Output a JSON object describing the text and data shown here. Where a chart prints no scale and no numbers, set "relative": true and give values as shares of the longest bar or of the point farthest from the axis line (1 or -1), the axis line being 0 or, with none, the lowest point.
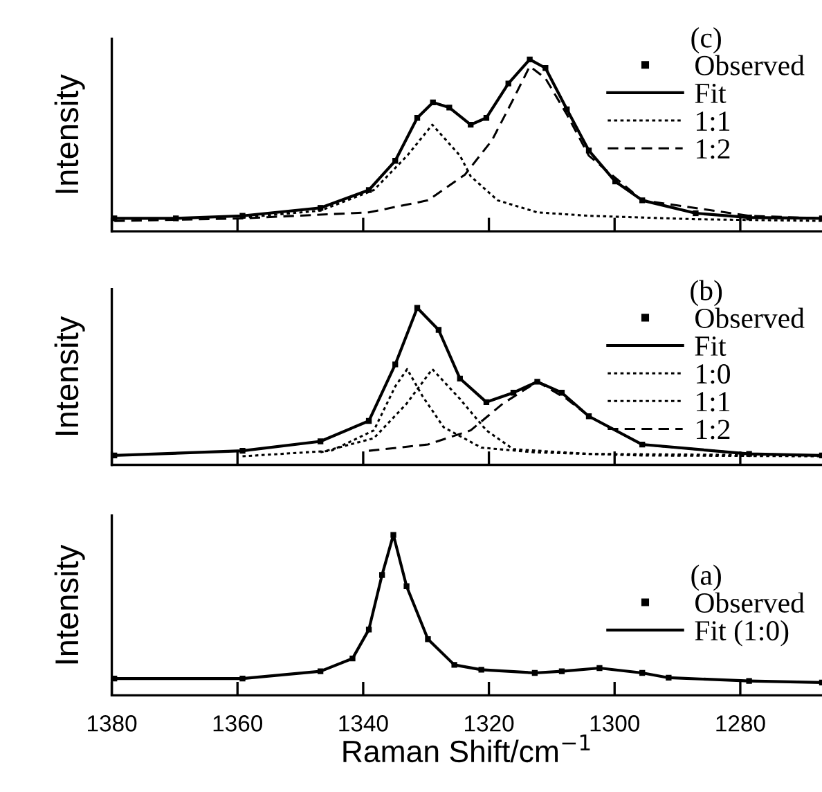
{
  "chart_data": [
    {
      "type": "line",
      "relative": true,
      "ylabel": "Intensity",
      "legend_title": "(c)",
      "legend": "top right",
      "tick_labels": false,
      "xlim": [
        1380,
        1267
      ],
      "xticks": [
        1380,
        1360,
        1340,
        1320,
        1300,
        1280
      ],
      "grid": false,
      "series": [
        {
          "name": "Observed",
          "type": "scatter",
          "marker": "square",
          "color": "#000000",
          "x": [
            1379.6,
            1369.8,
            1359.2,
            1346.8,
            1339.1,
            1334.9,
            1331.4,
            1328.9,
            1326.3,
            1322.9,
            1320.4,
            1316.9,
            1313.5,
            1311.0,
            1307.6,
            1304.1,
            1299.9,
            1295.6,
            1287.1,
            1278.6,
            1267
          ],
          "values": [
            0.075,
            0.075,
            0.09,
            0.136,
            0.24,
            0.41,
            0.66,
            0.75,
            0.72,
            0.62,
            0.66,
            0.86,
            1.0,
            0.95,
            0.71,
            0.47,
            0.29,
            0.18,
            0.105,
            0.08,
            0.075
          ]
        },
        {
          "name": "Fit",
          "line_style": "solid",
          "color": "#000000",
          "x": [
            1379.6,
            1369.8,
            1359.2,
            1346.8,
            1339.1,
            1334.9,
            1331.4,
            1328.9,
            1326.3,
            1322.9,
            1320.4,
            1316.9,
            1313.5,
            1311.0,
            1307.6,
            1304.1,
            1299.9,
            1295.6,
            1287.1,
            1278.6,
            1267
          ],
          "values": [
            0.075,
            0.075,
            0.09,
            0.136,
            0.24,
            0.41,
            0.66,
            0.75,
            0.72,
            0.62,
            0.66,
            0.86,
            1.0,
            0.95,
            0.71,
            0.47,
            0.29,
            0.18,
            0.105,
            0.08,
            0.075
          ]
        },
        {
          "name": "1:1",
          "line_style": "dotted",
          "color": "#000000",
          "x": [
            1359.2,
            1346.8,
            1338.3,
            1333.0,
            1329.0,
            1324.6,
            1322.9,
            1318.6,
            1312.3,
            1304.1,
            1287.1,
            1267
          ],
          "values": [
            0.08,
            0.12,
            0.24,
            0.44,
            0.62,
            0.44,
            0.32,
            0.18,
            0.11,
            0.09,
            0.07,
            0.06
          ]
        },
        {
          "name": "1:2",
          "line_style": "dashed",
          "color": "#000000",
          "x": [
            1379.6,
            1359.2,
            1339.1,
            1329.7,
            1323.8,
            1319.5,
            1316.1,
            1313.5,
            1311.0,
            1307.6,
            1304.1,
            1295.6,
            1278.6,
            1267
          ],
          "values": [
            0.06,
            0.075,
            0.11,
            0.18,
            0.33,
            0.53,
            0.77,
            0.96,
            0.89,
            0.68,
            0.44,
            0.18,
            0.09,
            0.075
          ]
        }
      ]
    },
    {
      "type": "line",
      "relative": true,
      "ylabel": "Intensity",
      "legend_title": "(b)",
      "legend": "top right",
      "tick_labels": false,
      "xlim": [
        1380,
        1267
      ],
      "xticks": [
        1380,
        1360,
        1340,
        1320,
        1300,
        1280
      ],
      "grid": false,
      "series": [
        {
          "name": "Observed",
          "type": "scatter",
          "marker": "square",
          "color": "#000000",
          "x": [
            1379.6,
            1359.2,
            1346.8,
            1339.1,
            1334.9,
            1331.4,
            1328.0,
            1324.6,
            1320.4,
            1316.1,
            1312.3,
            1308.4,
            1304.1,
            1295.6,
            1278.6,
            1267
          ],
          "values": [
            0.06,
            0.09,
            0.15,
            0.28,
            0.64,
            1.0,
            0.86,
            0.55,
            0.4,
            0.46,
            0.53,
            0.46,
            0.31,
            0.13,
            0.07,
            0.06
          ]
        },
        {
          "name": "Fit",
          "line_style": "solid",
          "color": "#000000",
          "x": [
            1379.6,
            1359.2,
            1346.8,
            1339.1,
            1334.9,
            1331.4,
            1328.0,
            1324.6,
            1320.4,
            1316.1,
            1312.3,
            1308.4,
            1304.1,
            1295.6,
            1278.6,
            1267
          ],
          "values": [
            0.06,
            0.09,
            0.15,
            0.28,
            0.64,
            1.0,
            0.86,
            0.55,
            0.4,
            0.46,
            0.53,
            0.46,
            0.31,
            0.13,
            0.07,
            0.06
          ]
        },
        {
          "name": "1:0",
          "line_style": "dotted",
          "color": "#000000",
          "x": [
            1359.2,
            1345.1,
            1338.3,
            1334.9,
            1333.0,
            1330.6,
            1327.2,
            1321.2,
            1312.7,
            1295.6,
            1267
          ],
          "values": [
            0.055,
            0.09,
            0.22,
            0.5,
            0.61,
            0.44,
            0.24,
            0.11,
            0.08,
            0.06,
            0.055
          ]
        },
        {
          "name": "1:1",
          "line_style": "dotted",
          "color": "#000000",
          "x": [
            1346.8,
            1338.3,
            1333.1,
            1329.0,
            1324.6,
            1320.4,
            1316.1,
            1304.1,
            1267
          ],
          "values": [
            0.08,
            0.17,
            0.39,
            0.61,
            0.42,
            0.22,
            0.1,
            0.07,
            0.06
          ]
        },
        {
          "name": "1:2",
          "line_style": "dashed",
          "color": "#000000",
          "x": [
            1339.1,
            1329.7,
            1322.9,
            1317.8,
            1312.3,
            1307.6,
            1304.1,
            1295.6,
            1278.6,
            1267
          ],
          "values": [
            0.09,
            0.13,
            0.22,
            0.39,
            0.53,
            0.42,
            0.31,
            0.13,
            0.07,
            0.06
          ]
        }
      ]
    },
    {
      "type": "line",
      "relative": true,
      "ylabel": "Intensity",
      "xlabel": "Raman Shift/cm$^{−1}$",
      "legend_title": "(a)",
      "legend": "right",
      "tick_labels": "x",
      "xlim": [
        1380,
        1267
      ],
      "xticks": [
        1380,
        1360,
        1340,
        1320,
        1300,
        1280
      ],
      "grid": false,
      "series": [
        {
          "name": "Observed",
          "type": "scatter",
          "marker": "square",
          "color": "#000000",
          "x": [
            1379.6,
            1359.2,
            1346.8,
            1341.7,
            1339.1,
            1337.0,
            1335.2,
            1333.1,
            1329.7,
            1325.5,
            1321.2,
            1312.7,
            1308.4,
            1302.4,
            1295.6,
            1291.4,
            1278.6,
            1267
          ],
          "values": [
            0.105,
            0.105,
            0.15,
            0.23,
            0.41,
            0.75,
            1.0,
            0.68,
            0.35,
            0.19,
            0.16,
            0.14,
            0.15,
            0.17,
            0.14,
            0.11,
            0.09,
            0.08
          ]
        },
        {
          "name": "Fit (1:0)",
          "line_style": "solid",
          "color": "#000000",
          "x": [
            1379.6,
            1359.2,
            1346.8,
            1341.7,
            1339.1,
            1337.0,
            1335.2,
            1333.1,
            1329.7,
            1325.5,
            1321.2,
            1312.7,
            1308.4,
            1302.4,
            1295.6,
            1291.4,
            1278.6,
            1267
          ],
          "values": [
            0.105,
            0.105,
            0.15,
            0.23,
            0.41,
            0.75,
            1.0,
            0.68,
            0.35,
            0.19,
            0.16,
            0.14,
            0.15,
            0.17,
            0.14,
            0.11,
            0.09,
            0.08
          ]
        }
      ]
    }
  ]
}
